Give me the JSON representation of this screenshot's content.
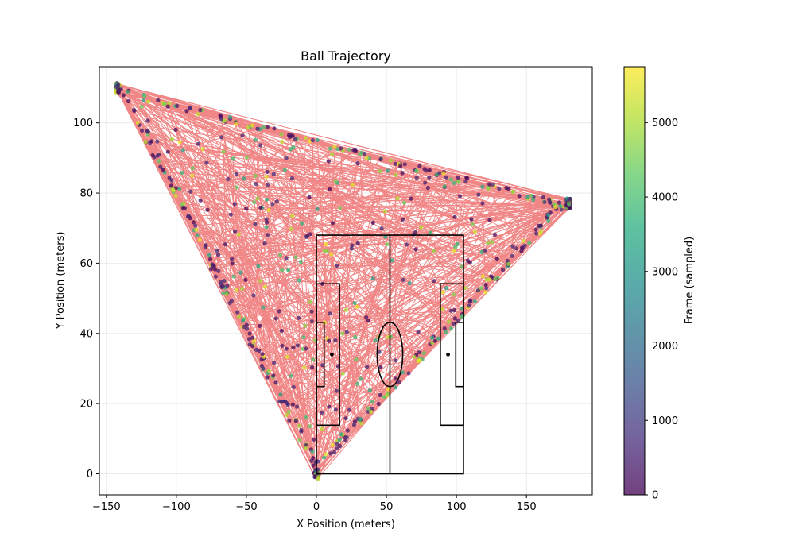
{
  "chart_data": {
    "type": "scatter",
    "title": "Ball Trajectory",
    "xlabel": "X Position (meters)",
    "ylabel": "Y Position (meters)",
    "xlim": [
      -155,
      197
    ],
    "ylim": [
      -6,
      116
    ],
    "xticks": [
      -150,
      -100,
      -50,
      0,
      50,
      100,
      150
    ],
    "yticks": [
      0,
      20,
      40,
      60,
      80,
      100
    ],
    "grid": true,
    "colorbar": {
      "label": "Frame (sampled)",
      "range": [
        0,
        5750
      ],
      "ticks": [
        0,
        1000,
        2000,
        3000,
        4000,
        5000
      ],
      "colormap": "viridis"
    },
    "trajectory_color": "#f08080",
    "triangle_vertices": [
      {
        "x": -142,
        "y": 110
      },
      {
        "x": 180,
        "y": 77
      },
      {
        "x": 0,
        "y": 0
      }
    ],
    "pitch": {
      "length": 105,
      "width": 68,
      "halfway_x": 52.5,
      "center_circle_radius": 9.15,
      "penalty_area": {
        "depth": 16.5,
        "y_min": 13.85,
        "y_max": 54.15
      },
      "goal_area": {
        "depth": 5.5,
        "y_min": 24.85,
        "y_max": 43.15
      },
      "penalty_spot_distance": 11
    }
  }
}
